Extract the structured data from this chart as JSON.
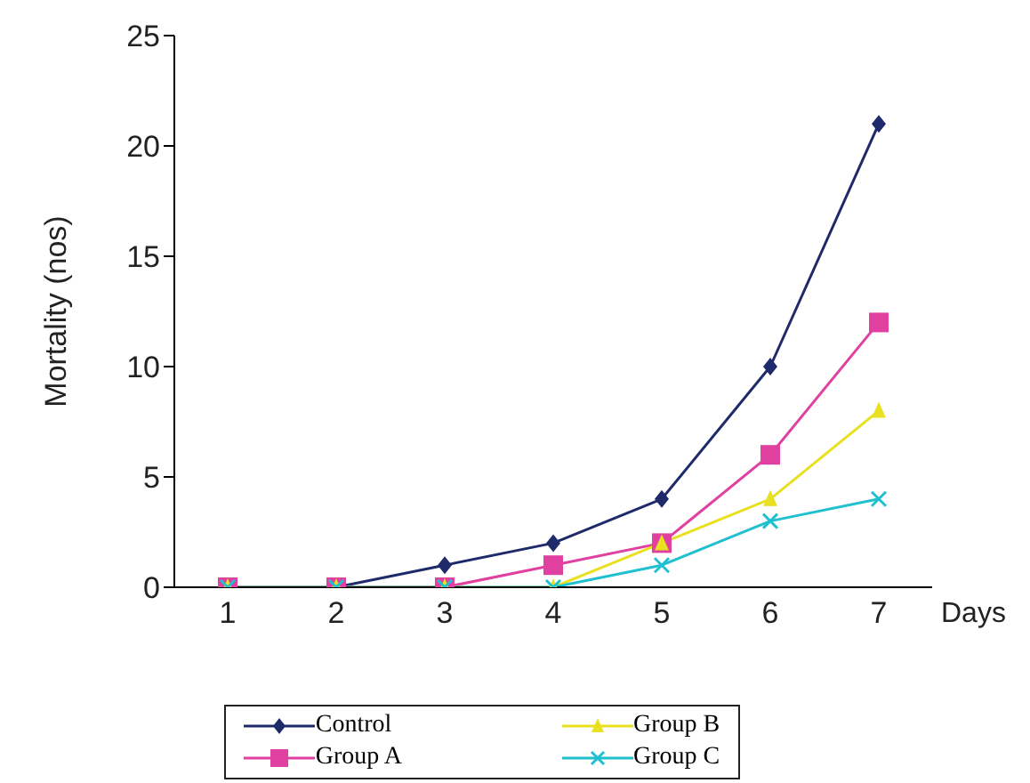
{
  "chart_data": {
    "type": "line",
    "ylabel": "Mortality (nos)",
    "xlabel": "Days",
    "categories": [
      "1",
      "2",
      "3",
      "4",
      "5",
      "6",
      "7"
    ],
    "series": [
      {
        "name": "Control",
        "color": "#1f2a6b",
        "marker": "diamond",
        "values": [
          0,
          0,
          1,
          2,
          4,
          10,
          21
        ]
      },
      {
        "name": "Group A",
        "color": "#e040a0",
        "marker": "square",
        "values": [
          0,
          0,
          0,
          1,
          2,
          6,
          12
        ]
      },
      {
        "name": "Group B",
        "color": "#e8e020",
        "marker": "triangle",
        "values": [
          0,
          0,
          0,
          0,
          2,
          4,
          8
        ]
      },
      {
        "name": "Group C",
        "color": "#20c0d0",
        "marker": "cross",
        "values": [
          0,
          0,
          0,
          0,
          1,
          3,
          4
        ]
      }
    ],
    "ylim": [
      0,
      25
    ],
    "yticks": [
      0,
      5,
      10,
      15,
      20,
      25
    ],
    "grid": false,
    "legend": "bottom",
    "line_style": "solid"
  }
}
